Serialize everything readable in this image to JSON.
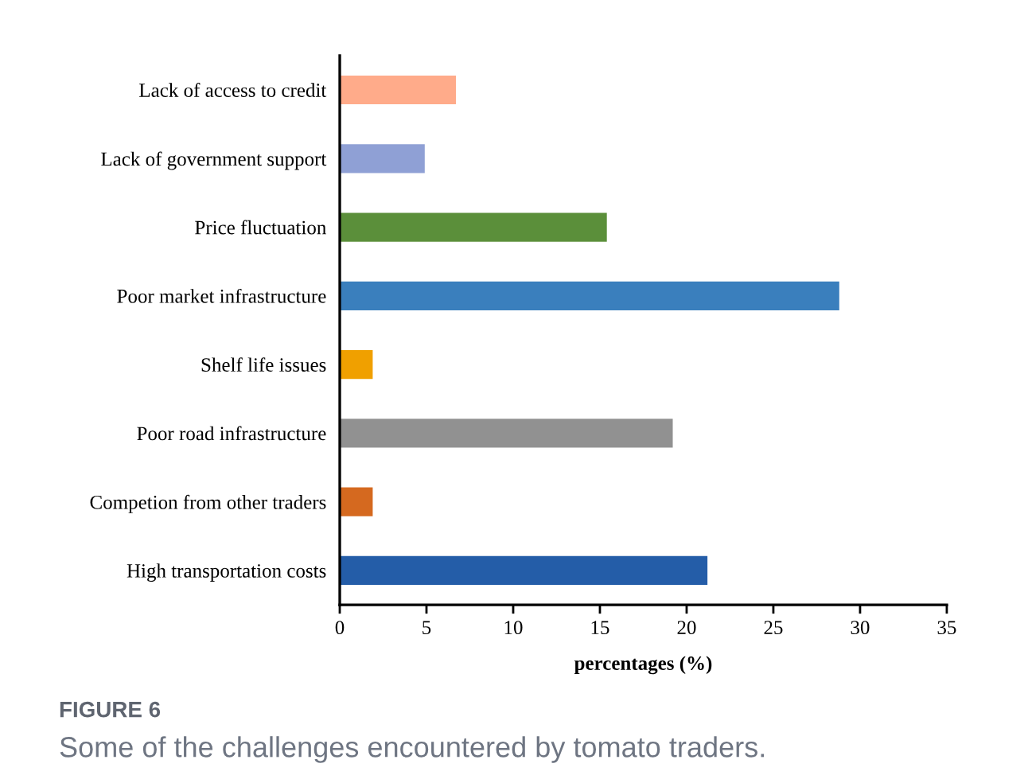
{
  "chart_data": {
    "type": "bar",
    "orientation": "horizontal",
    "categories": [
      "Lack of access to credit",
      "Lack of government support",
      "Price fluctuation",
      "Poor market infrastructure",
      "Shelf life issues",
      "Poor road infrastructure",
      "Competion from other traders",
      "High transportation costs"
    ],
    "values": [
      6.7,
      4.9,
      15.4,
      28.8,
      1.9,
      19.2,
      1.9,
      21.2
    ],
    "colors": [
      "#ffab8a",
      "#8fa0d5",
      "#5b8f3a",
      "#3a7fbd",
      "#f0a000",
      "#919191",
      "#d5691f",
      "#245da8"
    ],
    "xlabel": "percentages (%)",
    "xlim": [
      0,
      35
    ],
    "xticks": [
      0,
      5,
      10,
      15,
      20,
      25,
      30,
      35
    ],
    "grid": false,
    "annotations": [
      "FIGURE 6",
      "Some of the challenges encountered by tomato traders."
    ]
  }
}
